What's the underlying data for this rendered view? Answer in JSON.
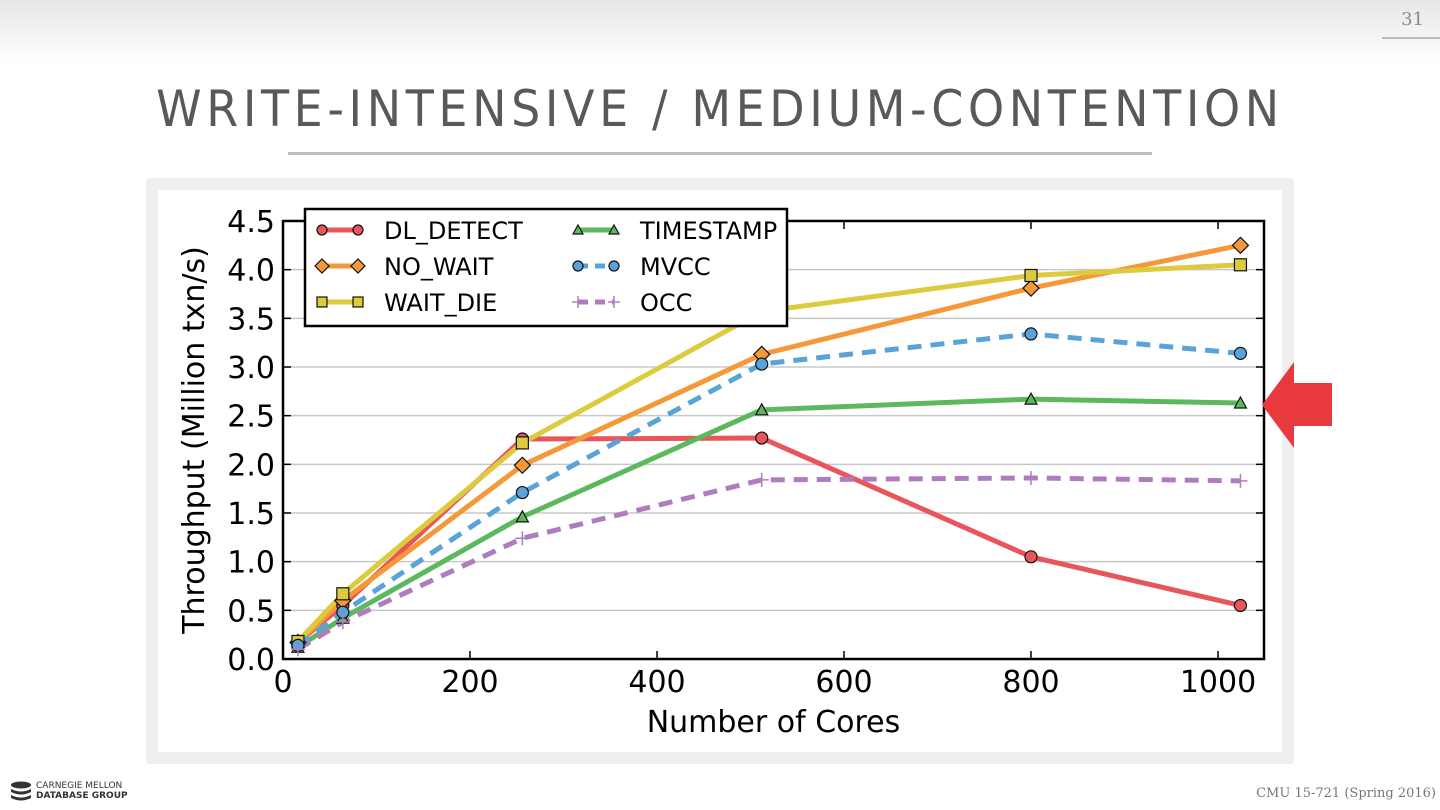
{
  "slide": {
    "number": "31",
    "title": "WRITE-INTENSIVE / MEDIUM-CONTENTION",
    "footer": "CMU 15-721 (Spring 2016)",
    "logo": {
      "line1": "CARNEGIE MELLON",
      "line2": "DATABASE GROUP"
    },
    "arrow_color": "#e8393f"
  },
  "chart_data": {
    "type": "line",
    "title": "",
    "xlabel": "Number of Cores",
    "ylabel": "Throughput (Million txn/s)",
    "xlim": [
      0,
      1050
    ],
    "ylim": [
      0,
      4.5
    ],
    "xticks": [
      0,
      200,
      400,
      600,
      800,
      1000
    ],
    "yticks": [
      0.0,
      0.5,
      1.0,
      1.5,
      2.0,
      2.5,
      3.0,
      3.5,
      4.0,
      4.5
    ],
    "xtick_labels": [
      "0",
      "200",
      "400",
      "600",
      "800",
      "1000"
    ],
    "ytick_labels": [
      "0.0",
      "0.5",
      "1.0",
      "1.5",
      "2.0",
      "2.5",
      "3.0",
      "3.5",
      "4.0",
      "4.5"
    ],
    "grid": "horizontal",
    "legend_position": "top-left",
    "x": [
      16,
      64,
      256,
      512,
      800,
      1024
    ],
    "series": [
      {
        "name": "DL_DETECT",
        "color": "#e8555a",
        "marker": "circle",
        "dash": "solid",
        "values": [
          0.17,
          0.55,
          2.26,
          2.27,
          1.05,
          0.55
        ]
      },
      {
        "name": "NO_WAIT",
        "color": "#f5983a",
        "marker": "diamond",
        "dash": "solid",
        "values": [
          0.17,
          0.6,
          1.99,
          3.13,
          3.81,
          4.25
        ]
      },
      {
        "name": "WAIT_DIE",
        "color": "#dccb3c",
        "marker": "square",
        "dash": "solid",
        "values": [
          0.18,
          0.67,
          2.22,
          3.57,
          3.94,
          4.05
        ]
      },
      {
        "name": "TIMESTAMP",
        "color": "#5cb85c",
        "marker": "triangle",
        "dash": "solid",
        "values": [
          0.12,
          0.42,
          1.46,
          2.56,
          2.67,
          2.63
        ]
      },
      {
        "name": "MVCC",
        "color": "#5aa3d8",
        "marker": "circle",
        "dash": "dashed",
        "values": [
          0.14,
          0.48,
          1.71,
          3.03,
          3.34,
          3.14
        ]
      },
      {
        "name": "OCC",
        "color": "#b07cc0",
        "marker": "plus",
        "dash": "dashed",
        "values": [
          0.1,
          0.38,
          1.24,
          1.84,
          1.86,
          1.83
        ]
      }
    ]
  }
}
